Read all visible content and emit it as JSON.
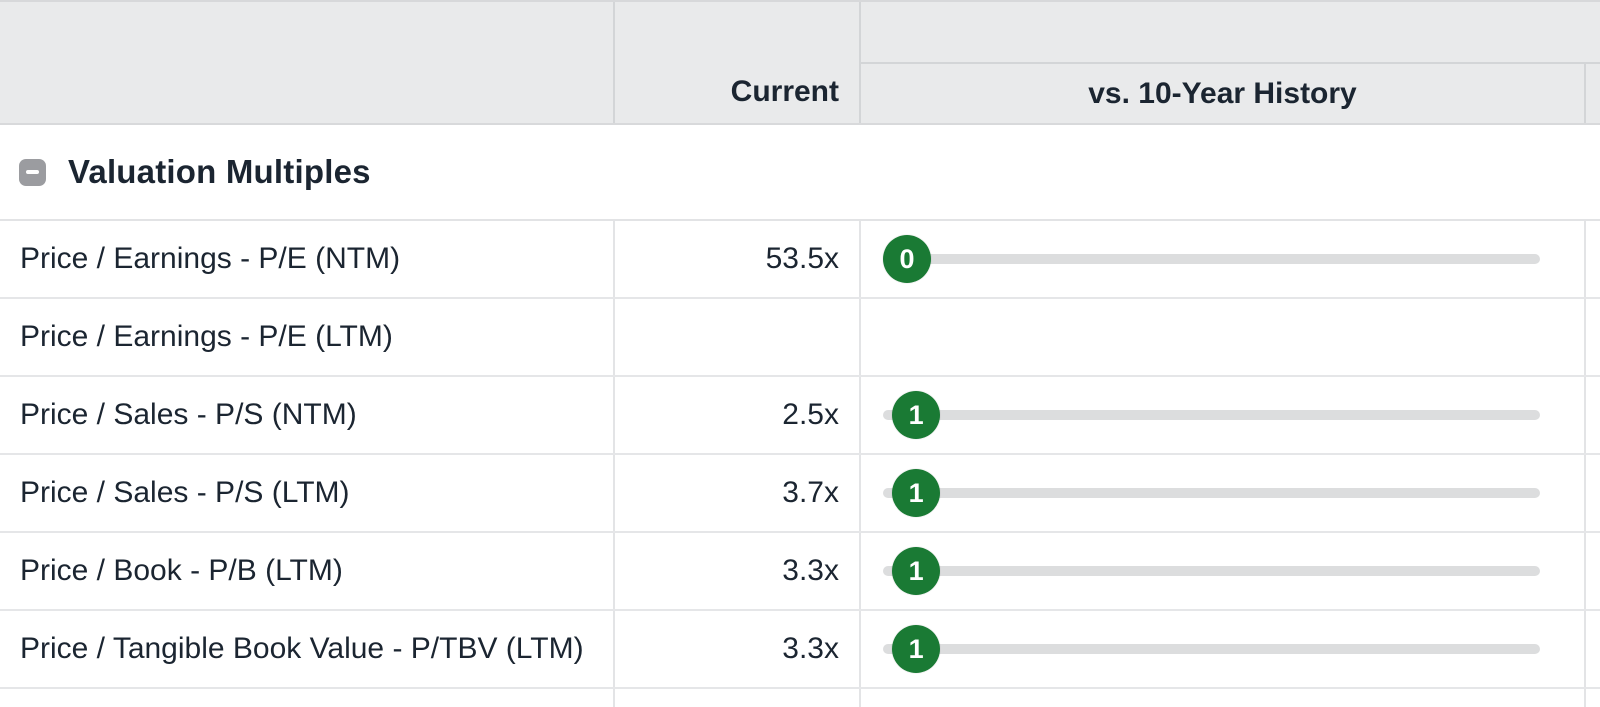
{
  "header": {
    "col_current": "Current",
    "col_history": "vs. 10-Year History"
  },
  "section": {
    "title": "Valuation Multiples",
    "collapse_icon": "minus-icon",
    "state": "expanded"
  },
  "rows": [
    {
      "label": "Price / Earnings - P/E (NTM)",
      "current": "53.5x",
      "slider": {
        "marker": "0",
        "position_pct": 0
      }
    },
    {
      "label": "Price / Earnings - P/E (LTM)",
      "current": "",
      "slider": null
    },
    {
      "label": "Price / Sales - P/S (NTM)",
      "current": "2.5x",
      "slider": {
        "marker": "1",
        "position_pct": 1.5
      }
    },
    {
      "label": "Price / Sales - P/S (LTM)",
      "current": "3.7x",
      "slider": {
        "marker": "1",
        "position_pct": 1.5
      }
    },
    {
      "label": "Price / Book - P/B (LTM)",
      "current": "3.3x",
      "slider": {
        "marker": "1",
        "position_pct": 1.5
      }
    },
    {
      "label": "Price / Tangible Book Value - P/TBV (LTM)",
      "current": "3.3x",
      "slider": {
        "marker": "1",
        "position_pct": 1.5
      }
    }
  ],
  "colors": {
    "green": "#1A7A34",
    "track_gray": "#DCDDDE",
    "header_bg": "#E9EAEB",
    "icon_gray": "#9B9CA0",
    "text": "#1B2531"
  }
}
